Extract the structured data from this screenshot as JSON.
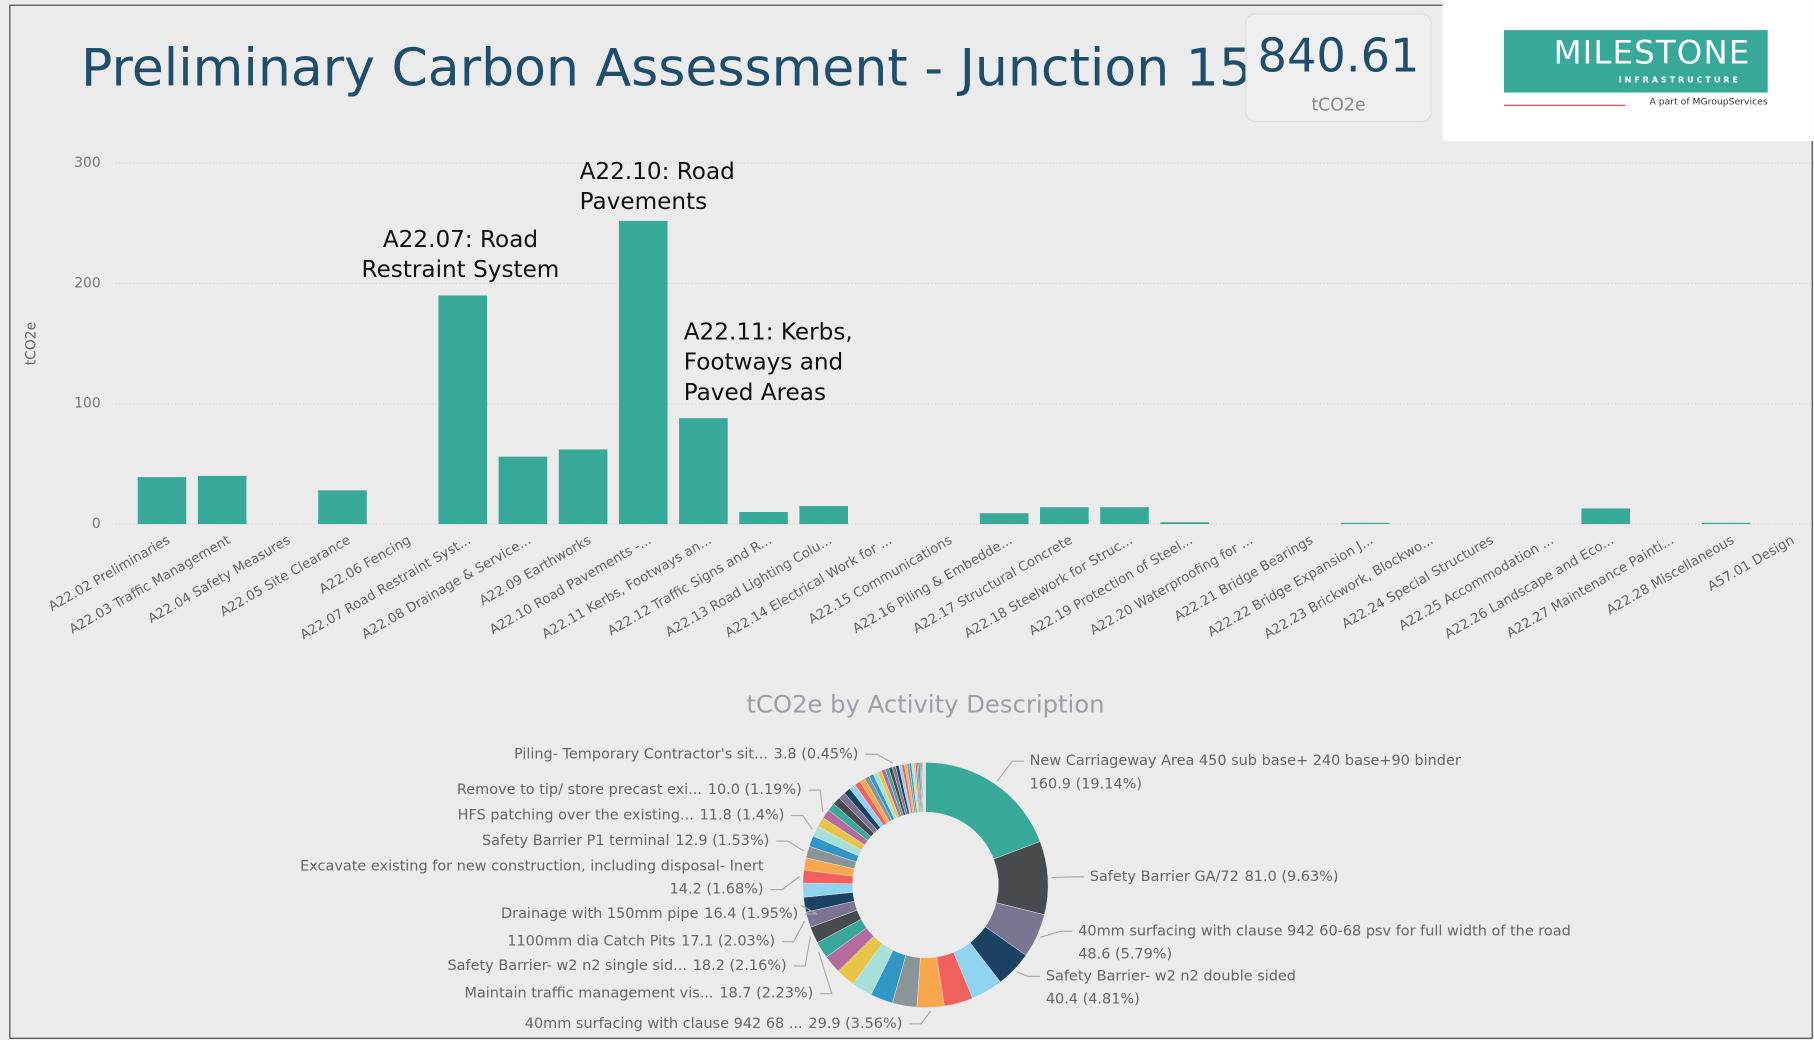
{
  "title": "Preliminary Carbon Assessment - Junction 15",
  "kpi": {
    "value": 840.61,
    "label": "tCO2e"
  },
  "logo": {
    "name": "MILESTONE",
    "sub": "INFRASTRUCTURE",
    "tagline": "A part of MGroupServices"
  },
  "chart_data": [
    {
      "type": "bar",
      "ylabel": "tCO2e",
      "categories": [
        "A22.02 Preliminaries",
        "A22.03 Traffic Management",
        "A22.04 Safety Measures",
        "A22.05 Site Clearance",
        "A22.06 Fencing",
        "A22.07 Road Restraint Syst...",
        "A22.08 Drainage & Service...",
        "A22.09 Earthworks",
        "A22.10 Road Pavements -...",
        "A22.11 Kerbs, Footways an...",
        "A22.12 Traffic Signs and R...",
        "A22.13 Road Lighting Colu...",
        "A22.14 Electrical Work for ...",
        "A22.15 Communications",
        "A22.16 Piling & Embedde...",
        "A22.17 Structural Concrete",
        "A22.18 Steelwork for Struc...",
        "A22.19 Protection of Steel...",
        "A22.20 Waterproofing for ...",
        "A22.21 Bridge Bearings",
        "A22.22 Bridge Expansion J...",
        "A22.23 Brickwork, Blockwo...",
        "A22.24 Special Structures",
        "A22.25 Accommodation ...",
        "A22.26 Landscape and Eco...",
        "A22.27 Maintenance Painti...",
        "A22.28 Miscellaneous",
        "A57.01 Design"
      ],
      "values": [
        39,
        40,
        0,
        28,
        0,
        190,
        56,
        62,
        252,
        88,
        10,
        15,
        0,
        0,
        9,
        14,
        14,
        1.5,
        0,
        0,
        1,
        0,
        0,
        0,
        13,
        0,
        1,
        0
      ],
      "color": "#38a898",
      "ylim": [
        0,
        300
      ],
      "yticks": [
        0,
        100,
        200,
        300
      ],
      "grid": true,
      "annotations": [
        [
          "A22.07: Road",
          "Restraint System"
        ],
        [
          "A22.10: Road",
          "Pavements"
        ],
        [
          "A22.11: Kerbs,",
          "Footways and",
          "Paved Areas"
        ]
      ]
    },
    {
      "type": "donut",
      "title": "tCO2e by Activity Description",
      "categories": [
        "New Carriageway Area 450 sub base+ 240 base+90 binder",
        "Safety Barrier GA/72",
        "40mm surfacing with clause 942 60-68 psv for full width of the road",
        "Safety Barrier- w2 n2 double sided",
        null,
        null,
        "40mm surfacing with clause 942 68 ...",
        null,
        null,
        null,
        null,
        null,
        "Maintain traffic management vis...",
        "Safety Barrier- w2 n2 single sid...",
        "1100mm dia Catch Pits",
        "Drainage with 150mm pipe",
        null,
        "Excavate existing for new construction, including disposal- Inert",
        null,
        "Safety Barrier P1 terminal",
        null,
        "HFS patching over the existing...",
        null,
        "Remove to tip/ store precast exi...",
        null,
        null,
        null,
        null,
        null,
        null,
        null,
        null,
        null,
        null,
        null,
        null,
        null,
        null,
        "Piling- Temporary Contractor's sit...",
        null,
        null,
        null,
        null,
        null,
        null,
        null,
        null,
        null,
        null,
        null,
        null,
        null,
        null,
        null,
        null,
        null,
        null,
        null,
        null
      ],
      "values": [
        160.9,
        81.0,
        48.6,
        40.4,
        35,
        32,
        29.9,
        27,
        25,
        23,
        21,
        20,
        18.7,
        18.2,
        17.1,
        16.4,
        15.5,
        14.2,
        13.5,
        12.9,
        12,
        11.8,
        11,
        10.0,
        9,
        8.5,
        8,
        7.5,
        7,
        6.5,
        6,
        5.5,
        5,
        5,
        4.5,
        4.5,
        4,
        4,
        3.8,
        3.5,
        3.2,
        3,
        2.8,
        2.6,
        2.4,
        2.2,
        2,
        1.8,
        1.6,
        1.4,
        1.2,
        1,
        0.9,
        0.8,
        0.7,
        0.6,
        0.5,
        0.4,
        0.3
      ],
      "value_labels": [
        "160.9 (19.14%)",
        "81.0 (9.63%)",
        "48.6 (5.79%)",
        "40.4 (4.81%)",
        null,
        null,
        "29.9 (3.56%)",
        null,
        null,
        null,
        null,
        null,
        "18.7 (2.23%)",
        "18.2 (2.16%)",
        "17.1 (2.03%)",
        "16.4 (1.95%)",
        null,
        "14.2 (1.68%)",
        null,
        "12.9 (1.53%)",
        null,
        "11.8 (1.4%)",
        null,
        "10.0 (1.19%)",
        null,
        null,
        null,
        null,
        null,
        null,
        null,
        null,
        null,
        null,
        null,
        null,
        null,
        null,
        "3.8 (0.45%)",
        null,
        null,
        null,
        null,
        null,
        null,
        null,
        null,
        null,
        null,
        null,
        null,
        null,
        null,
        null,
        null,
        null,
        null,
        null,
        null
      ],
      "palette": [
        "#38a898",
        "#474b4e",
        "#7d7494",
        "#1b4163",
        "#8fd3f0",
        "#f0605d",
        "#f9a74c",
        "#8a9499",
        "#3197c6",
        "#a7e0d8",
        "#e8c547",
        "#b56aa0"
      ]
    }
  ]
}
